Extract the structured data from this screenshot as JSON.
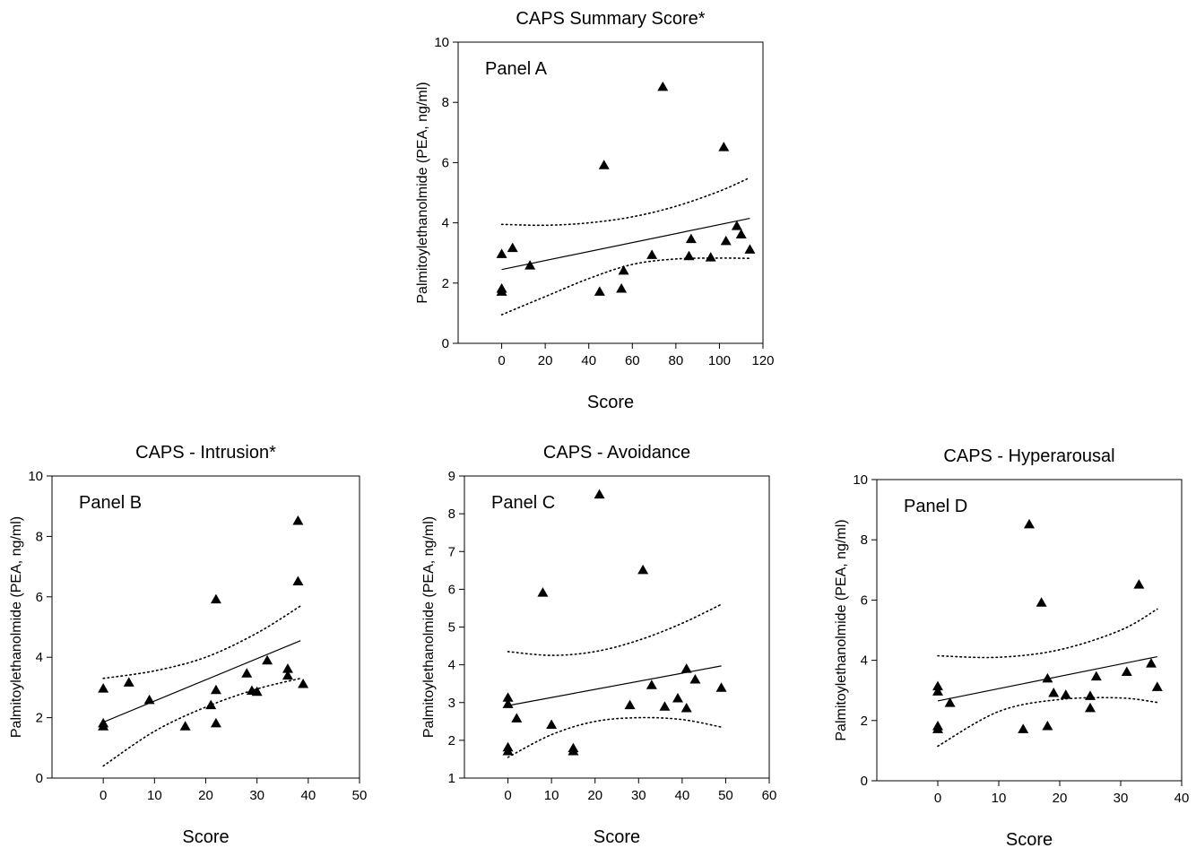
{
  "chart_data": [
    {
      "type": "scatter",
      "title": "CAPS Summary Score*",
      "panel_label": "Panel A",
      "xlabel": "Score",
      "ylabel": "Palmitoylethanolmide (PEA, ng/ml)",
      "xlim": [
        -20,
        120
      ],
      "ylim": [
        0,
        10
      ],
      "xticks": [
        0,
        20,
        40,
        60,
        80,
        100,
        120
      ],
      "yticks": [
        0,
        2,
        4,
        6,
        8,
        10
      ],
      "marker": "triangle",
      "points": [
        {
          "x": 0,
          "y": 2.95
        },
        {
          "x": 0,
          "y": 1.8
        },
        {
          "x": 0,
          "y": 1.7
        },
        {
          "x": 5,
          "y": 3.15
        },
        {
          "x": 13,
          "y": 2.57
        },
        {
          "x": 45,
          "y": 1.7
        },
        {
          "x": 47,
          "y": 5.9
        },
        {
          "x": 55,
          "y": 1.8
        },
        {
          "x": 56,
          "y": 2.4
        },
        {
          "x": 69,
          "y": 2.92
        },
        {
          "x": 74,
          "y": 8.5
        },
        {
          "x": 86,
          "y": 2.88
        },
        {
          "x": 87,
          "y": 3.45
        },
        {
          "x": 96,
          "y": 2.84
        },
        {
          "x": 102,
          "y": 6.5
        },
        {
          "x": 103,
          "y": 3.38
        },
        {
          "x": 108,
          "y": 3.88
        },
        {
          "x": 110,
          "y": 3.6
        },
        {
          "x": 114,
          "y": 3.1
        }
      ],
      "fit": {
        "x": [
          0,
          114
        ],
        "y": [
          2.45,
          4.15
        ]
      },
      "ci_upper": {
        "x": [
          0,
          20,
          40,
          60,
          80,
          100,
          114
        ],
        "y": [
          3.95,
          3.92,
          4.0,
          4.2,
          4.55,
          5.05,
          5.5
        ]
      },
      "ci_lower": {
        "x": [
          0,
          20,
          40,
          60,
          80,
          100,
          114
        ],
        "y": [
          0.95,
          1.55,
          2.15,
          2.62,
          2.8,
          2.83,
          2.82
        ]
      }
    },
    {
      "type": "scatter",
      "title": "CAPS - Intrusion*",
      "panel_label": "Panel B",
      "xlabel": "Score",
      "ylabel": "Palmitoylethanolmide (PEA, ng/ml)",
      "xlim": [
        -10,
        50
      ],
      "ylim": [
        0,
        10
      ],
      "xticks": [
        0,
        10,
        20,
        30,
        40,
        50
      ],
      "yticks": [
        0,
        2,
        4,
        6,
        8,
        10
      ],
      "marker": "triangle",
      "points": [
        {
          "x": 0,
          "y": 2.95
        },
        {
          "x": 0,
          "y": 1.8
        },
        {
          "x": 0,
          "y": 1.7
        },
        {
          "x": 5,
          "y": 3.15
        },
        {
          "x": 9,
          "y": 2.57
        },
        {
          "x": 16,
          "y": 1.7
        },
        {
          "x": 21,
          "y": 2.4
        },
        {
          "x": 22,
          "y": 5.9
        },
        {
          "x": 22,
          "y": 2.9
        },
        {
          "x": 22,
          "y": 1.8
        },
        {
          "x": 28,
          "y": 3.45
        },
        {
          "x": 29,
          "y": 2.88
        },
        {
          "x": 30,
          "y": 2.84
        },
        {
          "x": 32,
          "y": 3.88
        },
        {
          "x": 36,
          "y": 3.6
        },
        {
          "x": 36,
          "y": 3.38
        },
        {
          "x": 38,
          "y": 8.5
        },
        {
          "x": 38,
          "y": 6.5
        },
        {
          "x": 39,
          "y": 3.1
        }
      ],
      "fit": {
        "x": [
          0,
          38.5
        ],
        "y": [
          1.85,
          4.55
        ]
      },
      "ci_upper": {
        "x": [
          0,
          10,
          20,
          30,
          38.5
        ],
        "y": [
          3.3,
          3.55,
          4.0,
          4.8,
          5.7
        ]
      },
      "ci_lower": {
        "x": [
          0,
          10,
          20,
          30,
          38.5
        ],
        "y": [
          0.4,
          1.55,
          2.35,
          2.95,
          3.3
        ]
      }
    },
    {
      "type": "scatter",
      "title": "CAPS - Avoidance",
      "panel_label": "Panel C",
      "xlabel": "Score",
      "ylabel": "Palmitoylethanolmide (PEA, ng/ml)",
      "xlim": [
        -10,
        60
      ],
      "ylim": [
        1,
        9
      ],
      "xticks": [
        0,
        10,
        20,
        30,
        40,
        50,
        60
      ],
      "yticks": [
        1,
        2,
        3,
        4,
        5,
        6,
        7,
        8,
        9
      ],
      "marker": "triangle",
      "points": [
        {
          "x": 0,
          "y": 3.12
        },
        {
          "x": 0,
          "y": 2.95
        },
        {
          "x": 0,
          "y": 1.8
        },
        {
          "x": 0,
          "y": 1.7
        },
        {
          "x": 2,
          "y": 2.57
        },
        {
          "x": 8,
          "y": 5.9
        },
        {
          "x": 10,
          "y": 2.4
        },
        {
          "x": 15,
          "y": 1.78
        },
        {
          "x": 15,
          "y": 1.7
        },
        {
          "x": 21,
          "y": 8.5
        },
        {
          "x": 28,
          "y": 2.92
        },
        {
          "x": 31,
          "y": 6.5
        },
        {
          "x": 33,
          "y": 3.45
        },
        {
          "x": 36,
          "y": 2.88
        },
        {
          "x": 39,
          "y": 3.1
        },
        {
          "x": 41,
          "y": 3.88
        },
        {
          "x": 41,
          "y": 2.84
        },
        {
          "x": 43,
          "y": 3.6
        },
        {
          "x": 49,
          "y": 3.38
        }
      ],
      "fit": {
        "x": [
          0,
          49
        ],
        "y": [
          2.92,
          3.97
        ]
      },
      "ci_upper": {
        "x": [
          0,
          10,
          20,
          30,
          40,
          49
        ],
        "y": [
          4.35,
          4.25,
          4.35,
          4.65,
          5.1,
          5.6
        ]
      },
      "ci_lower": {
        "x": [
          0,
          10,
          20,
          30,
          40,
          49
        ],
        "y": [
          1.55,
          2.15,
          2.5,
          2.6,
          2.55,
          2.35
        ]
      }
    },
    {
      "type": "scatter",
      "title": "CAPS - Hyperarousal",
      "panel_label": "Panel D",
      "xlabel": "Score",
      "ylabel": "Palmitoylethanolmide (PEA, ng/ml)",
      "xlim": [
        -10,
        40
      ],
      "ylim": [
        0,
        10
      ],
      "xticks": [
        0,
        10,
        20,
        30,
        40
      ],
      "yticks": [
        0,
        2,
        4,
        6,
        8,
        10
      ],
      "marker": "triangle",
      "points": [
        {
          "x": 0,
          "y": 3.12
        },
        {
          "x": 0,
          "y": 2.95
        },
        {
          "x": 0,
          "y": 1.8
        },
        {
          "x": 0,
          "y": 1.7
        },
        {
          "x": 2,
          "y": 2.57
        },
        {
          "x": 14,
          "y": 1.7
        },
        {
          "x": 15,
          "y": 8.5
        },
        {
          "x": 17,
          "y": 5.9
        },
        {
          "x": 18,
          "y": 3.38
        },
        {
          "x": 18,
          "y": 1.8
        },
        {
          "x": 19,
          "y": 2.9
        },
        {
          "x": 21,
          "y": 2.84
        },
        {
          "x": 25,
          "y": 2.8
        },
        {
          "x": 25,
          "y": 2.4
        },
        {
          "x": 26,
          "y": 3.45
        },
        {
          "x": 31,
          "y": 3.6
        },
        {
          "x": 33,
          "y": 6.5
        },
        {
          "x": 35,
          "y": 3.88
        },
        {
          "x": 36,
          "y": 3.1
        }
      ],
      "fit": {
        "x": [
          0,
          36
        ],
        "y": [
          2.65,
          4.12
        ]
      },
      "ci_upper": {
        "x": [
          0,
          10,
          20,
          30,
          36
        ],
        "y": [
          4.15,
          4.1,
          4.35,
          5.0,
          5.7
        ]
      },
      "ci_lower": {
        "x": [
          0,
          10,
          20,
          30,
          36
        ],
        "y": [
          1.15,
          2.3,
          2.7,
          2.75,
          2.6
        ]
      }
    }
  ]
}
